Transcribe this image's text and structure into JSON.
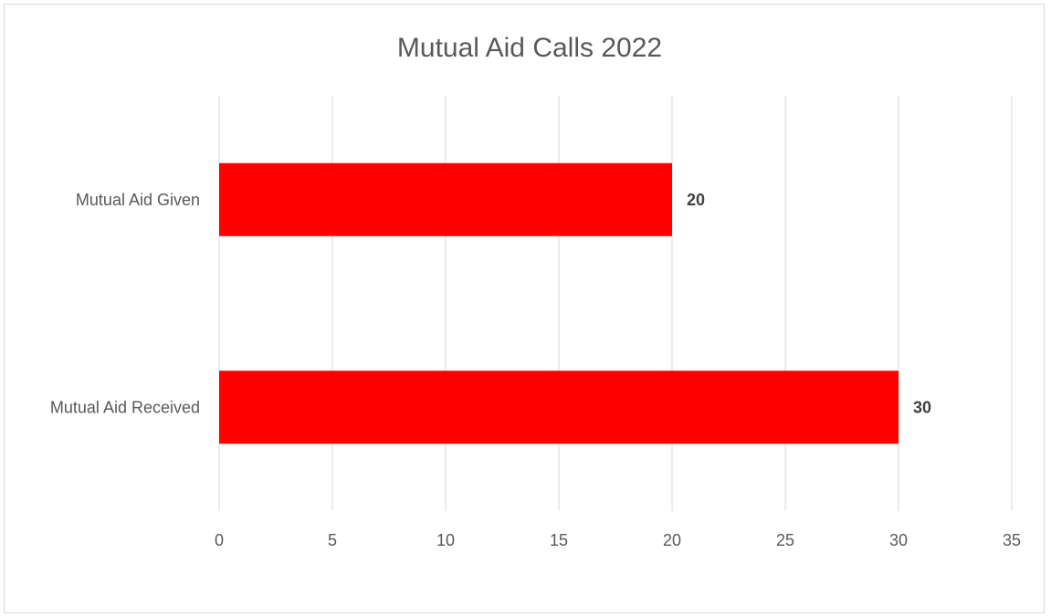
{
  "chart_data": {
    "type": "bar",
    "orientation": "horizontal",
    "title": "Mutual Aid Calls 2022",
    "xlabel": "",
    "ylabel": "",
    "categories": [
      "Mutual Aid Given",
      "Mutual Aid Received"
    ],
    "values": [
      20,
      30
    ],
    "data_labels": [
      "20",
      "30"
    ],
    "xlim": [
      0,
      35
    ],
    "ticks": [
      0,
      5,
      10,
      15,
      20,
      25,
      30,
      35
    ],
    "tick_labels": [
      "0",
      "5",
      "10",
      "15",
      "20",
      "25",
      "30",
      "35"
    ],
    "grid": "vertical",
    "legend": "none",
    "bar_color": "#ff0000"
  }
}
